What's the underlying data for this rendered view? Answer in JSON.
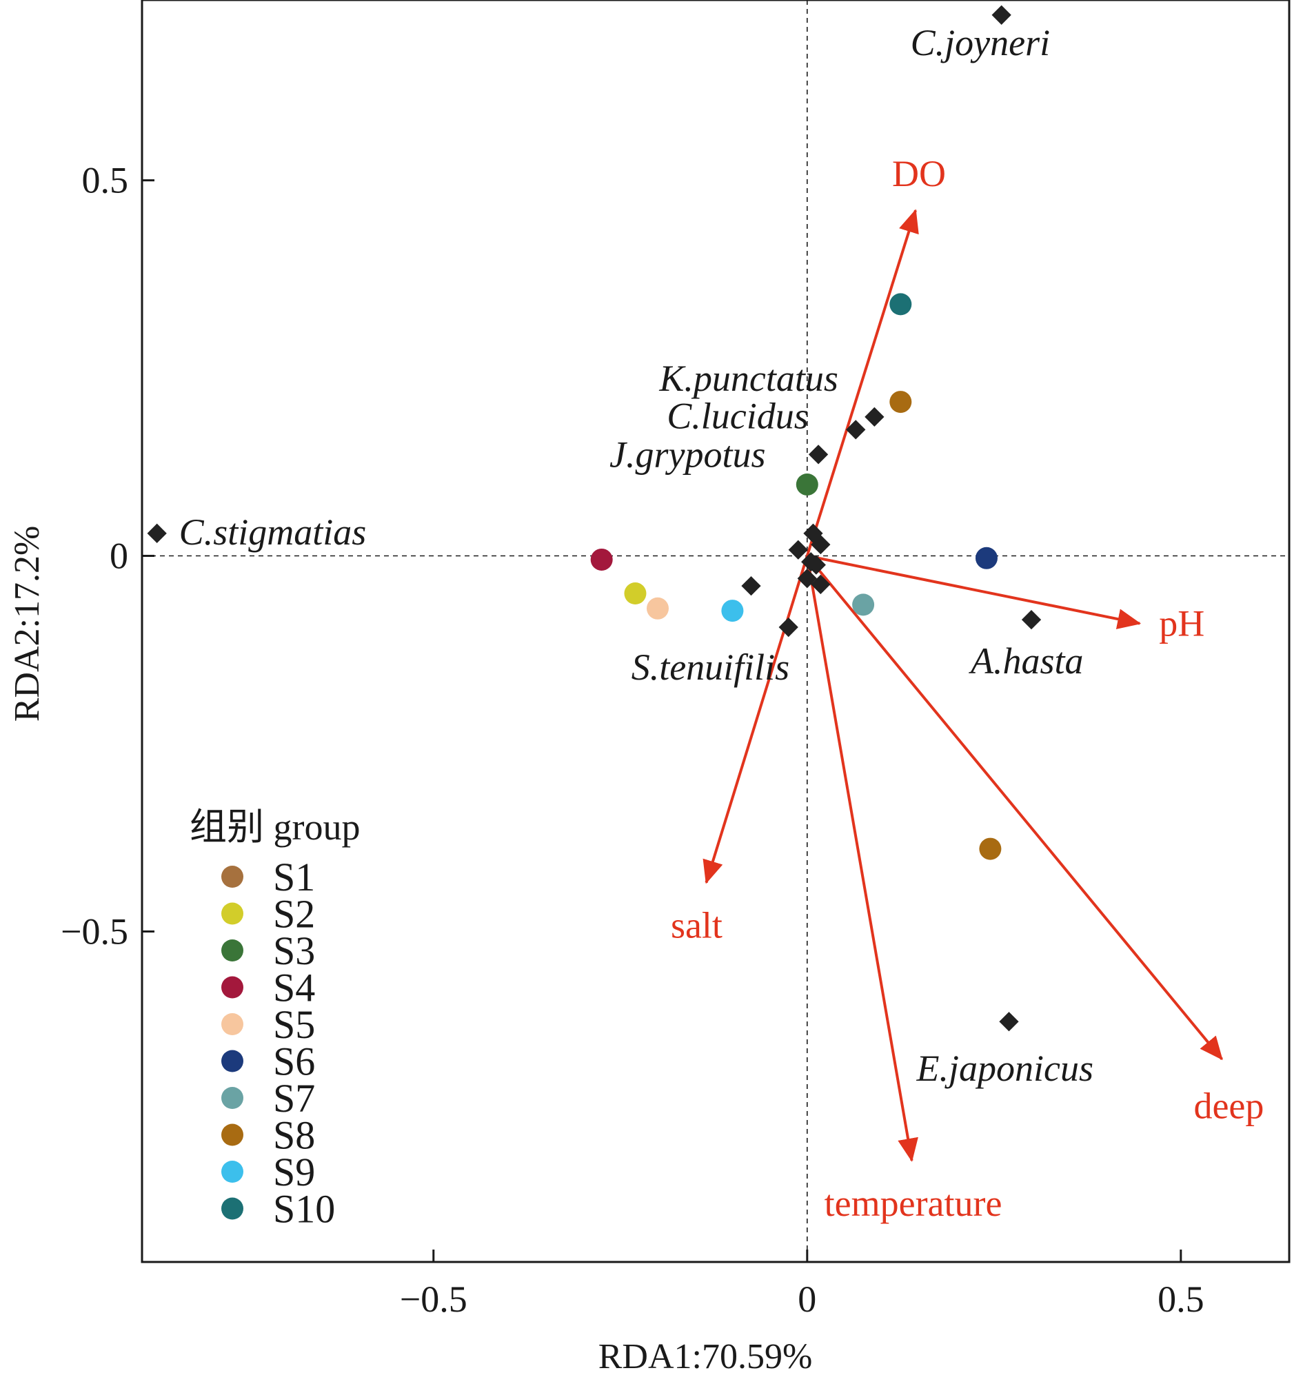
{
  "chart_data": {
    "type": "scatter",
    "title": "",
    "xlabel": "RDA1:70.59%",
    "ylabel": "RDA2:17.2%",
    "xlim": [
      -0.89,
      0.645
    ],
    "ylim": [
      -0.94,
      0.74
    ],
    "xticks": [
      -0.5,
      0,
      0.5
    ],
    "yticks": [
      -0.5,
      0,
      0.5
    ],
    "xtick_labels": [
      "−0.5",
      "0",
      "0.5"
    ],
    "ytick_labels": [
      "−0.5",
      "0",
      "0.5"
    ],
    "reference_lines": {
      "x": 0,
      "y": 0,
      "style": "dashed"
    },
    "legend": {
      "title": "组别 group",
      "position": "lower-left"
    },
    "sites": [
      {
        "name": "S1",
        "color": "#a6713e",
        "points": []
      },
      {
        "name": "S2",
        "color": "#d2cd2a",
        "points": [
          {
            "x": -0.23,
            "y": -0.05
          }
        ]
      },
      {
        "name": "S3",
        "color": "#3a7538",
        "points": [
          {
            "x": 0.0,
            "y": 0.095
          }
        ]
      },
      {
        "name": "S4",
        "color": "#a3183c",
        "points": [
          {
            "x": -0.275,
            "y": -0.005
          }
        ]
      },
      {
        "name": "S5",
        "color": "#f7c69e",
        "points": [
          {
            "x": -0.2,
            "y": -0.07
          }
        ]
      },
      {
        "name": "S6",
        "color": "#1c3a7c",
        "points": [
          {
            "x": 0.24,
            "y": -0.003
          }
        ]
      },
      {
        "name": "S7",
        "color": "#6aa3a4",
        "points": [
          {
            "x": 0.075,
            "y": -0.065
          }
        ]
      },
      {
        "name": "S8",
        "color": "#a86b12",
        "points": [
          {
            "x": 0.125,
            "y": 0.205
          },
          {
            "x": 0.245,
            "y": -0.39
          }
        ]
      },
      {
        "name": "S9",
        "color": "#3cbfec",
        "points": [
          {
            "x": -0.1,
            "y": -0.073
          }
        ]
      },
      {
        "name": "S10",
        "color": "#1c7074",
        "points": [
          {
            "x": 0.125,
            "y": 0.335
          }
        ]
      }
    ],
    "species": [
      {
        "name": "C.joyneri",
        "x": 0.26,
        "y": 0.72
      },
      {
        "name": "K.punctatus",
        "x": 0.09,
        "y": 0.185
      },
      {
        "name": "C.lucidus",
        "x": 0.065,
        "y": 0.168
      },
      {
        "name": "J.grypotus",
        "x": 0.015,
        "y": 0.135
      },
      {
        "name": "C.stigmatias",
        "x": -0.87,
        "y": 0.03
      },
      {
        "name": "S.tenuifilis",
        "x": -0.025,
        "y": -0.095
      },
      {
        "name": "A.hasta",
        "x": 0.3,
        "y": -0.085
      },
      {
        "name": "E.japonicus",
        "x": 0.27,
        "y": -0.62
      },
      {
        "name": "",
        "x": -0.075,
        "y": -0.04
      },
      {
        "name": "",
        "x": 0.008,
        "y": 0.03
      },
      {
        "name": "",
        "x": 0.018,
        "y": 0.015
      },
      {
        "name": "",
        "x": -0.012,
        "y": 0.008
      },
      {
        "name": "",
        "x": 0.005,
        "y": -0.008
      },
      {
        "name": "",
        "x": 0.0,
        "y": -0.03
      },
      {
        "name": "",
        "x": 0.018,
        "y": -0.038
      },
      {
        "name": "",
        "x": 0.012,
        "y": -0.012
      }
    ],
    "env_vectors": [
      {
        "name": "DO",
        "x": 0.145,
        "y": 0.46
      },
      {
        "name": "pH",
        "x": 0.445,
        "y": -0.09
      },
      {
        "name": "salt",
        "x": -0.135,
        "y": -0.435
      },
      {
        "name": "temperature",
        "x": 0.14,
        "y": -0.805
      },
      {
        "name": "deep",
        "x": 0.555,
        "y": -0.67
      }
    ],
    "colors": {
      "env": "#e2341d",
      "species": "#222222",
      "axis": "#1a1a1a"
    }
  }
}
